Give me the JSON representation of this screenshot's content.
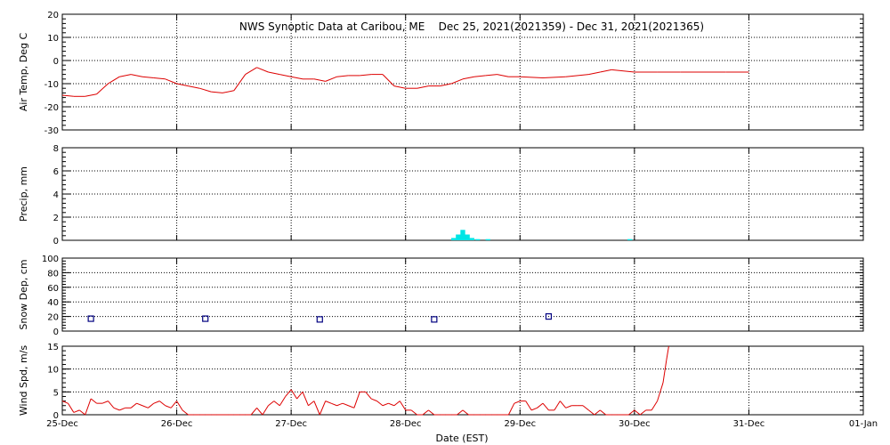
{
  "title": "NWS Synoptic Data at Caribou, ME    Dec 25, 2021(2021359) - Dec 31, 2021(2021365)",
  "xlabel": "Date (EST)",
  "x_ticks": [
    "25-Dec",
    "26-Dec",
    "27-Dec",
    "28-Dec",
    "29-Dec",
    "30-Dec",
    "31-Dec",
    "01-Jan"
  ],
  "colors": {
    "line": "#dd0000",
    "precip": "#00e5e5",
    "snow": "#000080",
    "grid": "#000000"
  },
  "chart_data": [
    {
      "type": "line",
      "ylabel": "Air Temp, Deg C",
      "ylim": [
        -30,
        20
      ],
      "y_ticks": [
        -30,
        -20,
        -10,
        0,
        10,
        20
      ],
      "x_unit": "days since 25-Dec 00:00",
      "grid": true,
      "x": [
        0,
        0.1,
        0.2,
        0.3,
        0.4,
        0.5,
        0.6,
        0.7,
        0.8,
        0.9,
        1.0,
        1.1,
        1.2,
        1.3,
        1.4,
        1.5,
        1.6,
        1.7,
        1.8,
        1.9,
        2.0,
        2.1,
        2.2,
        2.3,
        2.4,
        2.5,
        2.6,
        2.7,
        2.8,
        2.9,
        3.0,
        3.1,
        3.2,
        3.3,
        3.4,
        3.5,
        3.6,
        3.7,
        3.8,
        3.9,
        4.0,
        4.2,
        4.4,
        4.6,
        4.7,
        4.8,
        5.0,
        5.2,
        5.4,
        5.6,
        5.8,
        6.0
      ],
      "y": [
        -15,
        -15.5,
        -15.5,
        -14.5,
        -10,
        -7,
        -6,
        -7,
        -7.5,
        -8,
        -10,
        -11,
        -12,
        -13.5,
        -14,
        -13,
        -6,
        -3,
        -5,
        -6,
        -7,
        -8,
        -8,
        -9,
        -7,
        -6.5,
        -6.5,
        -6,
        -6,
        -11,
        -12,
        -12,
        -11,
        -11,
        -10,
        -8,
        -7,
        -6.5,
        -6,
        -7,
        -7,
        -7.5,
        -7,
        -6,
        -5,
        -4,
        -5,
        -5,
        -5,
        -5,
        -5,
        -5
      ]
    },
    {
      "type": "bar",
      "ylabel": "Precip, mm",
      "ylim": [
        0,
        8
      ],
      "y_ticks": [
        0,
        2,
        4,
        6,
        8
      ],
      "x_unit": "days since 25-Dec 00:00",
      "grid": true,
      "x": [
        3.42,
        3.46,
        3.5,
        3.54,
        3.58,
        3.63,
        3.67,
        3.72,
        4.96
      ],
      "values": [
        0.2,
        0.5,
        0.9,
        0.5,
        0.2,
        0.1,
        0,
        0.1,
        0.1
      ]
    },
    {
      "type": "scatter",
      "ylabel": "Snow Dep, cm",
      "ylim": [
        0,
        100
      ],
      "y_ticks": [
        0,
        20,
        40,
        60,
        80,
        100
      ],
      "x_unit": "days since 25-Dec 00:00",
      "grid": true,
      "x": [
        0.25,
        1.25,
        2.25,
        3.25,
        4.25
      ],
      "y": [
        17,
        17,
        16,
        16,
        20
      ]
    },
    {
      "type": "line",
      "ylabel": "Wind Spd, m/s",
      "ylim": [
        0,
        15
      ],
      "y_ticks": [
        0,
        5,
        10,
        15
      ],
      "x_unit": "days since 25-Dec 00:00",
      "grid": true,
      "x": [
        0,
        0.05,
        0.1,
        0.15,
        0.2,
        0.25,
        0.3,
        0.35,
        0.4,
        0.45,
        0.5,
        0.55,
        0.6,
        0.65,
        0.7,
        0.75,
        0.8,
        0.85,
        0.9,
        0.95,
        1.0,
        1.05,
        1.1,
        1.15,
        1.2,
        1.25,
        1.3,
        1.35,
        1.4,
        1.45,
        1.5,
        1.55,
        1.6,
        1.65,
        1.7,
        1.75,
        1.8,
        1.85,
        1.9,
        1.95,
        2.0,
        2.05,
        2.1,
        2.15,
        2.2,
        2.25,
        2.3,
        2.35,
        2.4,
        2.45,
        2.5,
        2.55,
        2.6,
        2.65,
        2.7,
        2.75,
        2.8,
        2.85,
        2.9,
        2.95,
        3.0,
        3.05,
        3.1,
        3.15,
        3.2,
        3.25,
        3.3,
        3.35,
        3.4,
        3.45,
        3.5,
        3.55,
        3.6,
        3.65,
        3.7,
        3.75,
        3.8,
        3.85,
        3.9,
        3.95,
        4.0,
        4.05,
        4.1,
        4.15,
        4.2,
        4.25,
        4.3,
        4.35,
        4.4,
        4.45,
        4.5,
        4.55,
        4.6,
        4.65,
        4.7,
        4.75,
        4.8,
        4.85,
        4.9,
        4.95,
        5.0,
        5.05,
        5.1,
        5.15,
        5.2,
        5.25,
        5.28,
        5.3
      ],
      "y": [
        3,
        2.5,
        0.5,
        1,
        0,
        3.5,
        2.5,
        2.5,
        3,
        1.5,
        1,
        1.5,
        1.5,
        2.5,
        2,
        1.5,
        2.5,
        3,
        2,
        1.5,
        3,
        1,
        0,
        0,
        0,
        0,
        0,
        0,
        0,
        0,
        0,
        0,
        0,
        0,
        1.5,
        0,
        2,
        3,
        2,
        4,
        5.5,
        3.5,
        5,
        2,
        3,
        0,
        3,
        2.5,
        2,
        2.5,
        2,
        1.5,
        5,
        5,
        3.5,
        3,
        2,
        2.5,
        2,
        3,
        1,
        1,
        0,
        0,
        1,
        0,
        0,
        0,
        0,
        0,
        1,
        0,
        0,
        0,
        0,
        0,
        0,
        0,
        0,
        2.5,
        3,
        3,
        1,
        1.5,
        2.5,
        1,
        1,
        3,
        1.5,
        2,
        2,
        2,
        1,
        0,
        1,
        0,
        0,
        0,
        0,
        0,
        1,
        0,
        1,
        1,
        3,
        7,
        12,
        15
      ]
    }
  ]
}
